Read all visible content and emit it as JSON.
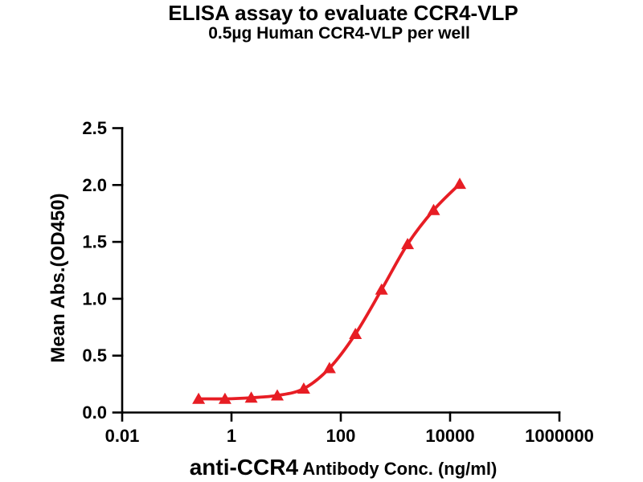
{
  "figure": {
    "title": "ELISA assay to evaluate CCR4-VLP",
    "subtitle": "0.5µg Human CCR4-VLP per well"
  },
  "chart_data": {
    "type": "line",
    "title": "ELISA assay to evaluate CCR4-VLP",
    "subtitle": "0.5µg Human CCR4-VLP per well",
    "ylabel": "Mean Abs.(OD450)",
    "xlabel_emphasis": "anti-CCR4",
    "xlabel_rest": " Antibody Conc. (ng/ml)",
    "x_scale": "log10",
    "xlim": [
      0.01,
      1000000
    ],
    "ylim": [
      0.0,
      2.5
    ],
    "grid": false,
    "legend": "none",
    "x_ticks": [
      {
        "value": 0.01,
        "label": "0.01"
      },
      {
        "value": 1,
        "label": "1"
      },
      {
        "value": 100,
        "label": "100"
      },
      {
        "value": 10000,
        "label": "10000"
      },
      {
        "value": 1000000,
        "label": "1000000"
      }
    ],
    "y_ticks": [
      {
        "value": 0.0,
        "label": "0.0"
      },
      {
        "value": 0.5,
        "label": "0.5"
      },
      {
        "value": 1.0,
        "label": "1.0"
      },
      {
        "value": 1.5,
        "label": "1.5"
      },
      {
        "value": 2.0,
        "label": "2.0"
      },
      {
        "value": 2.5,
        "label": "2.5"
      }
    ],
    "series": [
      {
        "name": "0.5µg Human CCR4-VLP per well",
        "marker": "filled-triangle-up",
        "line_style": "4PL-sigmoid-fit",
        "color": "#E71D24",
        "points": [
          {
            "x": 0.25,
            "y": 0.12
          },
          {
            "x": 0.76,
            "y": 0.12
          },
          {
            "x": 2.3,
            "y": 0.13
          },
          {
            "x": 6.9,
            "y": 0.15
          },
          {
            "x": 21,
            "y": 0.21
          },
          {
            "x": 62,
            "y": 0.39
          },
          {
            "x": 185,
            "y": 0.69
          },
          {
            "x": 556,
            "y": 1.08
          },
          {
            "x": 1667,
            "y": 1.48
          },
          {
            "x": 5000,
            "y": 1.78
          },
          {
            "x": 15000,
            "y": 2.01
          }
        ]
      }
    ],
    "colors": {
      "curve": "#E71D24",
      "axis": "#000000",
      "text": "#000000",
      "background": "#FFFFFF"
    }
  }
}
